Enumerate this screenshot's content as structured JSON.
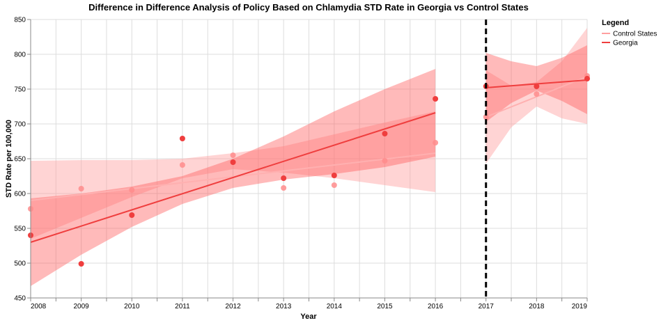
{
  "chart_data": {
    "type": "scatter",
    "title": "Difference in Difference Analysis of Policy Based on Chlamydia STD Rate in Georgia vs Control States",
    "xlabel": "Year",
    "ylabel": "STD Rate per 100,000",
    "xlim": [
      2008,
      2019
    ],
    "ylim": [
      450,
      850
    ],
    "x_ticks": [
      "2008",
      "2009",
      "2010",
      "2011",
      "2012",
      "2013",
      "2014",
      "2015",
      "2016",
      "2017",
      "2018",
      "2019"
    ],
    "y_ticks": [
      "450",
      "500",
      "550",
      "600",
      "650",
      "700",
      "750",
      "800",
      "850"
    ],
    "grid": true,
    "policy_year": 2017,
    "legend": {
      "title": "Legend",
      "position": "right"
    },
    "series": [
      {
        "name": "Control States",
        "color": "#ff9f9f",
        "points": [
          {
            "x": 2008,
            "y": 578
          },
          {
            "x": 2009,
            "y": 607
          },
          {
            "x": 2010,
            "y": 605
          },
          {
            "x": 2011,
            "y": 641
          },
          {
            "x": 2012,
            "y": 655
          },
          {
            "x": 2013,
            "y": 608
          },
          {
            "x": 2014,
            "y": 612
          },
          {
            "x": 2015,
            "y": 647
          },
          {
            "x": 2016,
            "y": 673
          },
          {
            "x": 2017,
            "y": 710
          },
          {
            "x": 2018,
            "y": 743
          },
          {
            "x": 2019,
            "y": 769
          }
        ],
        "pre_fit": {
          "x": [
            2008,
            2016
          ],
          "y": [
            590,
            658
          ]
        },
        "pre_band": {
          "x": [
            2008,
            2009,
            2010,
            2011,
            2012,
            2013,
            2014,
            2015,
            2016
          ],
          "lower": [
            535,
            565,
            595,
            622,
            635,
            630,
            622,
            612,
            602
          ],
          "upper": [
            647,
            648,
            648,
            650,
            658,
            668,
            685,
            702,
            718
          ]
        },
        "post_fit": {
          "x": [
            2017,
            2019
          ],
          "y": [
            710,
            768
          ]
        },
        "post_band": {
          "x": [
            2017,
            2017.5,
            2018,
            2018.5,
            2019
          ],
          "lower": [
            643,
            695,
            725,
            708,
            700
          ],
          "upper": [
            777,
            755,
            760,
            790,
            838
          ]
        }
      },
      {
        "name": "Georgia",
        "color": "#ef3e3e",
        "points": [
          {
            "x": 2008,
            "y": 540
          },
          {
            "x": 2009,
            "y": 499
          },
          {
            "x": 2010,
            "y": 569
          },
          {
            "x": 2011,
            "y": 679
          },
          {
            "x": 2012,
            "y": 645
          },
          {
            "x": 2013,
            "y": 622
          },
          {
            "x": 2014,
            "y": 626
          },
          {
            "x": 2015,
            "y": 686
          },
          {
            "x": 2016,
            "y": 736
          },
          {
            "x": 2017,
            "y": 754
          },
          {
            "x": 2018,
            "y": 754
          },
          {
            "x": 2019,
            "y": 765
          }
        ],
        "pre_fit": {
          "x": [
            2008,
            2016
          ],
          "y": [
            530,
            716
          ]
        },
        "pre_band": {
          "x": [
            2008,
            2009,
            2010,
            2011,
            2012,
            2013,
            2014,
            2015,
            2016
          ],
          "lower": [
            467,
            512,
            552,
            585,
            608,
            620,
            628,
            638,
            653
          ],
          "upper": [
            593,
            600,
            610,
            625,
            650,
            682,
            718,
            750,
            779
          ]
        },
        "post_fit": {
          "x": [
            2017,
            2019
          ],
          "y": [
            752,
            763
          ]
        },
        "post_band": {
          "x": [
            2017,
            2017.5,
            2018,
            2018.5,
            2019
          ],
          "lower": [
            703,
            730,
            748,
            733,
            714
          ],
          "upper": [
            802,
            790,
            783,
            795,
            813
          ]
        }
      }
    ]
  }
}
